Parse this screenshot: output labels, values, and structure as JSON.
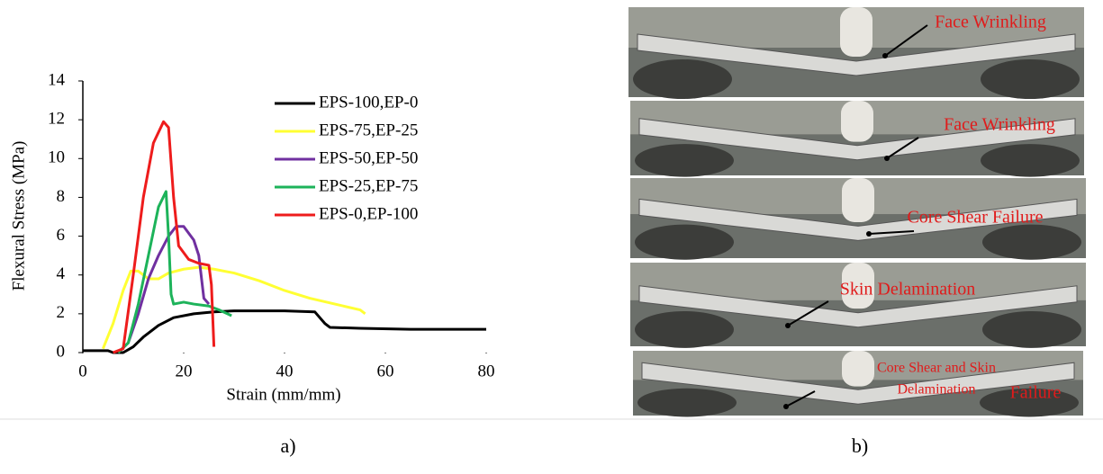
{
  "chart_data": {
    "type": "line",
    "xlabel": "Strain (mm/mm)",
    "ylabel": "Flexural Stress (MPa)",
    "xlim": [
      0,
      80
    ],
    "xticks": [
      0,
      20,
      40,
      60,
      80
    ],
    "ylim": [
      0,
      14
    ],
    "yticks": [
      0,
      2,
      4,
      6,
      8,
      10,
      12,
      14
    ],
    "series": [
      {
        "name": "EPS-100,EP-0",
        "color": "#000000",
        "x": [
          0,
          5,
          6,
          8,
          10,
          12,
          15,
          18,
          22,
          26,
          30,
          40,
          46,
          47,
          48,
          49,
          55,
          65,
          75,
          80
        ],
        "values": [
          0.1,
          0.1,
          0,
          0,
          0.3,
          0.8,
          1.4,
          1.8,
          2.0,
          2.1,
          2.15,
          2.15,
          2.1,
          1.8,
          1.5,
          1.3,
          1.25,
          1.2,
          1.2,
          1.2
        ]
      },
      {
        "name": "EPS-75,EP-25",
        "color": "#ffff33",
        "x": [
          4,
          6,
          8,
          9.5,
          11,
          13,
          15,
          17,
          20,
          23,
          26,
          30,
          35,
          40,
          45,
          50,
          55,
          56
        ],
        "values": [
          0.2,
          1.5,
          3.2,
          4.2,
          4.2,
          3.8,
          3.8,
          4.1,
          4.3,
          4.4,
          4.3,
          4.1,
          3.7,
          3.2,
          2.8,
          2.5,
          2.2,
          2.0
        ]
      },
      {
        "name": "EPS-50,EP-50",
        "color": "#7030a0",
        "x": [
          7,
          9,
          11,
          13,
          15,
          17,
          18.5,
          20,
          22,
          23,
          24,
          25
        ],
        "values": [
          0,
          0.5,
          2,
          3.8,
          5.0,
          6.0,
          6.5,
          6.5,
          5.8,
          5.0,
          2.8,
          2.5
        ]
      },
      {
        "name": "EPS-25,EP-75",
        "color": "#1db35a",
        "x": [
          7,
          9,
          11,
          13,
          15,
          16.5,
          17,
          17.5,
          18,
          20,
          22,
          25,
          27,
          29.5
        ],
        "values": [
          0,
          0.5,
          2.5,
          5,
          7.5,
          8.3,
          6,
          3,
          2.5,
          2.6,
          2.5,
          2.4,
          2.2,
          1.9
        ]
      },
      {
        "name": "EPS-0,EP-100",
        "color": "#ee1c1c",
        "x": [
          6,
          8,
          10,
          12,
          14,
          16,
          17,
          18,
          19,
          21,
          23,
          25,
          25.5,
          26
        ],
        "values": [
          0,
          0.2,
          4,
          8,
          10.8,
          11.9,
          11.6,
          8,
          5.5,
          4.8,
          4.6,
          4.5,
          3.5,
          0.3
        ]
      }
    ]
  },
  "photos": [
    {
      "lines": [
        "Face Wrinkling"
      ]
    },
    {
      "lines": [
        "Face Wrinkling"
      ]
    },
    {
      "lines": [
        "Core Shear Failure"
      ]
    },
    {
      "lines": [
        "Skin Delamination"
      ]
    },
    {
      "lines": [
        "Core Shear and Skin",
        "Delamination",
        "Failure"
      ]
    }
  ],
  "panel_labels": [
    "a)",
    "b)"
  ]
}
